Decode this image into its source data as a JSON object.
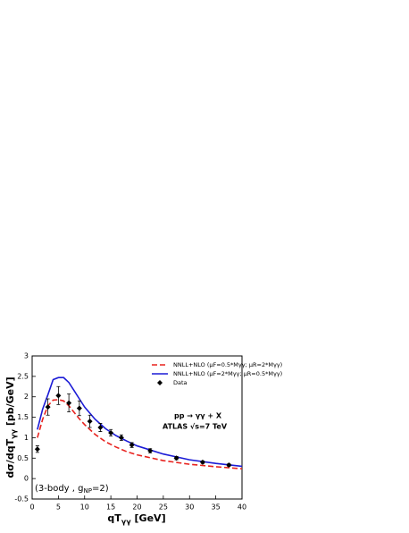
{
  "chart_data": {
    "type": "line",
    "x_label": [
      "qT",
      "γγ",
      " [GeV]"
    ],
    "y_label": [
      "dσ/dqT",
      "γγ",
      " [pb/GeV]"
    ],
    "annotations": [
      "pp → γγ + X",
      "ATLAS √s=7 TeV"
    ],
    "note": [
      "(3-body , g",
      "NP",
      "=2)"
    ],
    "xlim": [
      0,
      40
    ],
    "xticks": [
      0,
      5,
      10,
      15,
      20,
      25,
      30,
      35,
      40
    ],
    "ylim": [
      -0.5,
      3
    ],
    "yticks": [
      -0.5,
      0,
      0.5,
      1,
      1.5,
      2,
      2.5,
      3
    ],
    "legend": "upper right",
    "series": [
      {
        "name": "NNLL+NLO (μF=0.5*Mγγ; μR=2*Mγγ)",
        "type": "line",
        "dash": true,
        "color": "#e8231f",
        "x": [
          1,
          2,
          3,
          4,
          5,
          6,
          7,
          8,
          9,
          10,
          12,
          14,
          16,
          18,
          20,
          25,
          30,
          35,
          40
        ],
        "values": [
          1.0,
          1.45,
          1.78,
          1.92,
          1.93,
          1.9,
          1.78,
          1.62,
          1.46,
          1.32,
          1.08,
          0.9,
          0.77,
          0.66,
          0.58,
          0.44,
          0.35,
          0.29,
          0.24
        ]
      },
      {
        "name": "NNLL+NLO (μF=2*Mγγ; μR=0.5*Mγγ)",
        "type": "line",
        "dash": false,
        "color": "#1b1bd6",
        "x": [
          1,
          2,
          3,
          4,
          5,
          6,
          7,
          8,
          9,
          10,
          12,
          14,
          16,
          18,
          20,
          25,
          30,
          35,
          40
        ],
        "values": [
          1.2,
          1.7,
          2.05,
          2.42,
          2.47,
          2.47,
          2.35,
          2.15,
          1.95,
          1.75,
          1.45,
          1.22,
          1.05,
          0.92,
          0.8,
          0.6,
          0.46,
          0.37,
          0.3
        ]
      },
      {
        "name": "Data",
        "type": "scatter",
        "color": "#000000",
        "x": [
          1,
          3,
          5,
          7,
          9,
          11,
          13,
          15,
          17,
          19,
          22.5,
          27.5,
          32.5,
          37.5
        ],
        "values": [
          0.72,
          1.75,
          2.03,
          1.85,
          1.72,
          1.4,
          1.25,
          1.12,
          1.0,
          0.82,
          0.68,
          0.5,
          0.4,
          0.33
        ],
        "errors": [
          0.08,
          0.2,
          0.22,
          0.22,
          0.18,
          0.15,
          0.1,
          0.08,
          0.07,
          0.06,
          0.05,
          0.04,
          0.03,
          0.03
        ]
      }
    ]
  }
}
